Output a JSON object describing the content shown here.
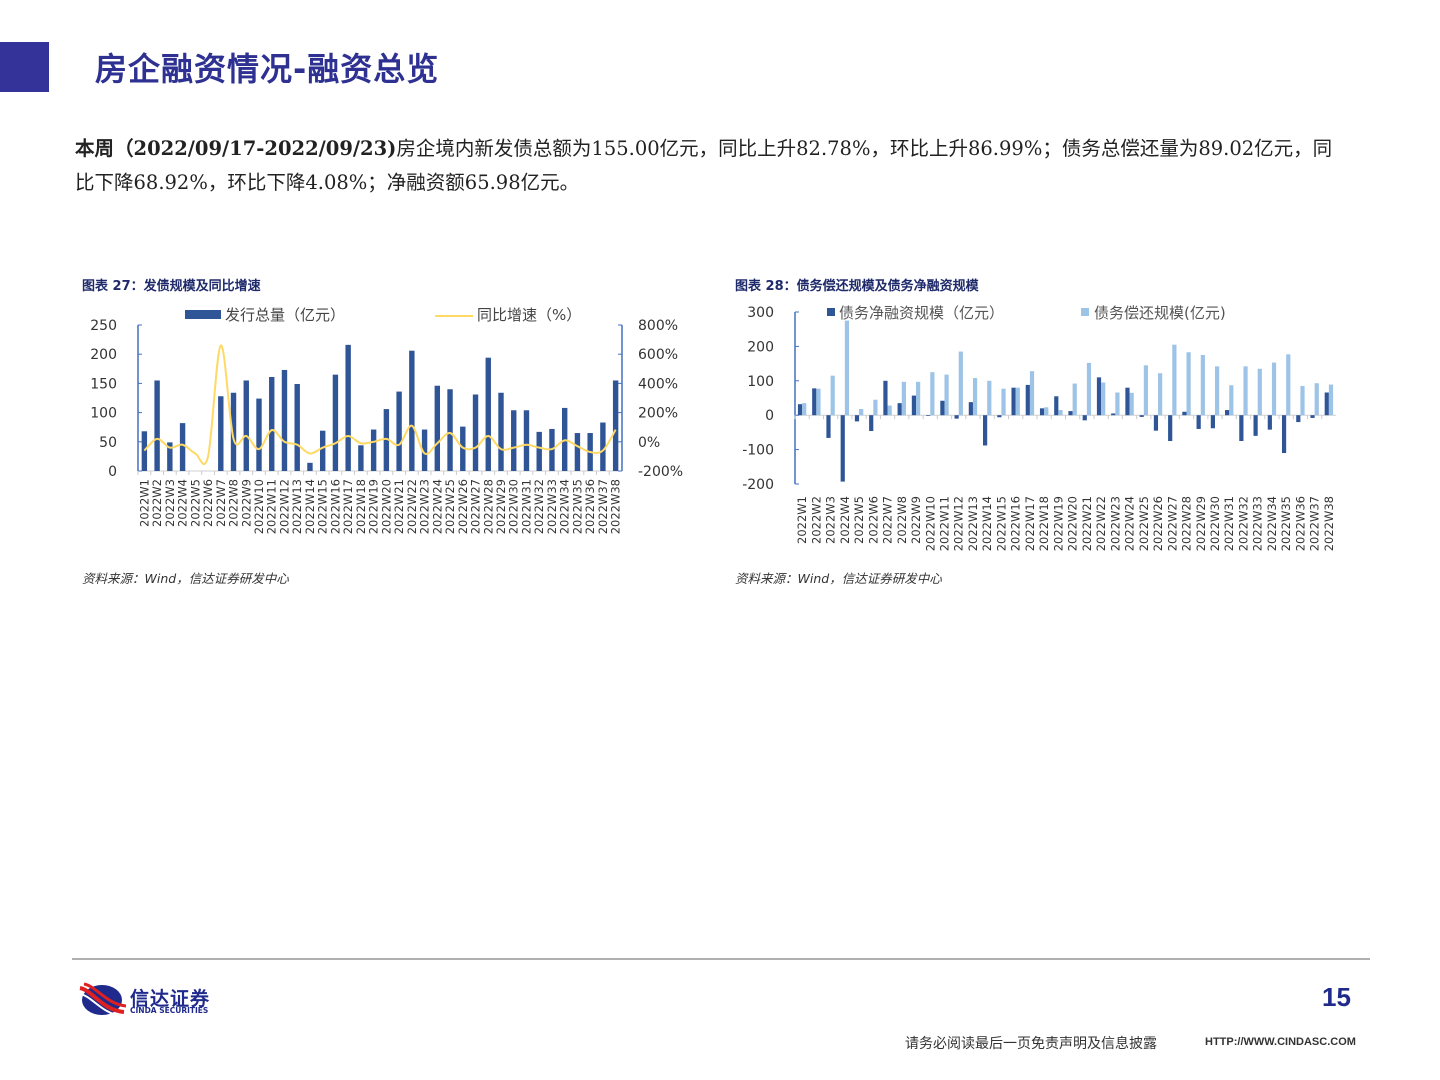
{
  "header": {
    "title": "房企融资情况-融资总览"
  },
  "summary": {
    "bold_prefix": "本周（2022/09/17-2022/09/23)",
    "text": "房企境内新发债总额为155.00亿元，同比上升82.78%，环比上升86.99%；债务总偿还量为89.02亿元，同比下降68.92%，环比下降4.08%；净融资额65.98亿元。"
  },
  "figure27": {
    "caption": "图表 27：发债规模及同比增速",
    "source": "资料来源：Wind，信达证券研发中心"
  },
  "figure28": {
    "caption": "图表 28：债务偿还规模及债务净融资规模",
    "source": "资料来源：Wind，信达证券研发中心"
  },
  "footer": {
    "logo_cn": "信达证券",
    "logo_en": "CINDA SECURITIES",
    "page_number": "15",
    "disclaimer": "请务必阅读最后一页免责声明及信息披露",
    "website": "HTTP://WWW.CINDASC.COM"
  },
  "colors": {
    "brand_blue": "#2e3192",
    "bar_dark": "#2f5597",
    "bar_light": "#9dc3e6",
    "line_yellow": "#ffd966",
    "axis_blue": "#4472c4"
  },
  "chart_data": [
    {
      "type": "bar",
      "title": "发债规模及同比增速",
      "categories": [
        "2022W1",
        "2022W2",
        "2022W3",
        "2022W4",
        "2022W5",
        "2022W6",
        "2022W7",
        "2022W8",
        "2022W9",
        "2022W10",
        "2022W11",
        "2022W12",
        "2022W13",
        "2022W14",
        "2022W15",
        "2022W16",
        "2022W17",
        "2022W18",
        "2022W19",
        "2022W20",
        "2022W21",
        "2022W22",
        "2022W23",
        "2022W24",
        "2022W25",
        "2022W26",
        "2022W27",
        "2022W28",
        "2022W29",
        "2022W30",
        "2022W31",
        "2022W32",
        "2022W33",
        "2022W34",
        "2022W35",
        "2022W36",
        "2022W37",
        "2022W38"
      ],
      "series": [
        {
          "name": "发行总量（亿元）",
          "type": "bar",
          "axis": "left",
          "values": [
            68,
            155,
            49,
            82,
            0,
            0,
            128,
            134,
            155,
            124,
            161,
            173,
            149,
            14,
            69,
            165,
            216,
            44,
            71,
            106,
            136,
            206,
            71,
            146,
            140,
            76,
            131,
            194,
            134,
            104,
            104,
            67,
            72,
            108,
            65,
            65,
            83,
            155
          ]
        },
        {
          "name": "同比增速（%）",
          "type": "line",
          "axis": "right",
          "values": [
            -60,
            20,
            -40,
            -20,
            -80,
            -100,
            660,
            20,
            40,
            -50,
            80,
            0,
            -20,
            -80,
            -40,
            -10,
            40,
            -10,
            0,
            20,
            -20,
            110,
            -80,
            -10,
            60,
            -40,
            -40,
            40,
            -50,
            -40,
            -20,
            -40,
            -50,
            10,
            -30,
            -70,
            -60,
            83
          ]
        }
      ],
      "xlabel": "",
      "ylabel_left": "",
      "ylabel_right": "",
      "ylim_left": [
        0,
        250
      ],
      "yticks_left": [
        0,
        50,
        100,
        150,
        200,
        250
      ],
      "ylim_right": [
        -200,
        800
      ],
      "yticks_right": [
        "-200%",
        "0%",
        "200%",
        "400%",
        "600%",
        "800%"
      ],
      "legend_position": "top",
      "grid": false
    },
    {
      "type": "bar",
      "title": "债务偿还规模及债务净融资规模",
      "categories": [
        "2022W1",
        "2022W2",
        "2022W3",
        "2022W4",
        "2022W5",
        "2022W6",
        "2022W7",
        "2022W8",
        "2022W9",
        "2022W10",
        "2022W11",
        "2022W12",
        "2022W13",
        "2022W14",
        "2022W15",
        "2022W16",
        "2022W17",
        "2022W18",
        "2022W19",
        "2022W20",
        "2022W21",
        "2022W22",
        "2022W23",
        "2022W24",
        "2022W25",
        "2022W26",
        "2022W27",
        "2022W28",
        "2022W29",
        "2022W30",
        "2022W31",
        "2022W32",
        "2022W33",
        "2022W34",
        "2022W35",
        "2022W36",
        "2022W37",
        "2022W38"
      ],
      "series": [
        {
          "name": "债务净融资规模（亿元）",
          "values": [
            32,
            78,
            -66,
            -193,
            -18,
            -46,
            100,
            35,
            57,
            -2,
            42,
            -10,
            38,
            -88,
            -6,
            80,
            88,
            20,
            55,
            12,
            -15,
            110,
            5,
            80,
            -5,
            -45,
            -75,
            10,
            -40,
            -38,
            15,
            -75,
            -60,
            -42,
            -110,
            -20,
            -8,
            66
          ]
        },
        {
          "name": "债务偿还规模(亿元)",
          "values": [
            35,
            77,
            115,
            275,
            18,
            45,
            28,
            97,
            97,
            125,
            118,
            185,
            108,
            100,
            77,
            80,
            128,
            23,
            15,
            92,
            152,
            95,
            66,
            65,
            145,
            122,
            205,
            183,
            175,
            142,
            87,
            142,
            135,
            153,
            177,
            85,
            93,
            89
          ]
        }
      ],
      "xlabel": "",
      "ylabel": "",
      "ylim": [
        -200,
        300
      ],
      "yticks": [
        -200,
        -100,
        0,
        100,
        200,
        300
      ],
      "legend_position": "top",
      "grid": false
    }
  ]
}
